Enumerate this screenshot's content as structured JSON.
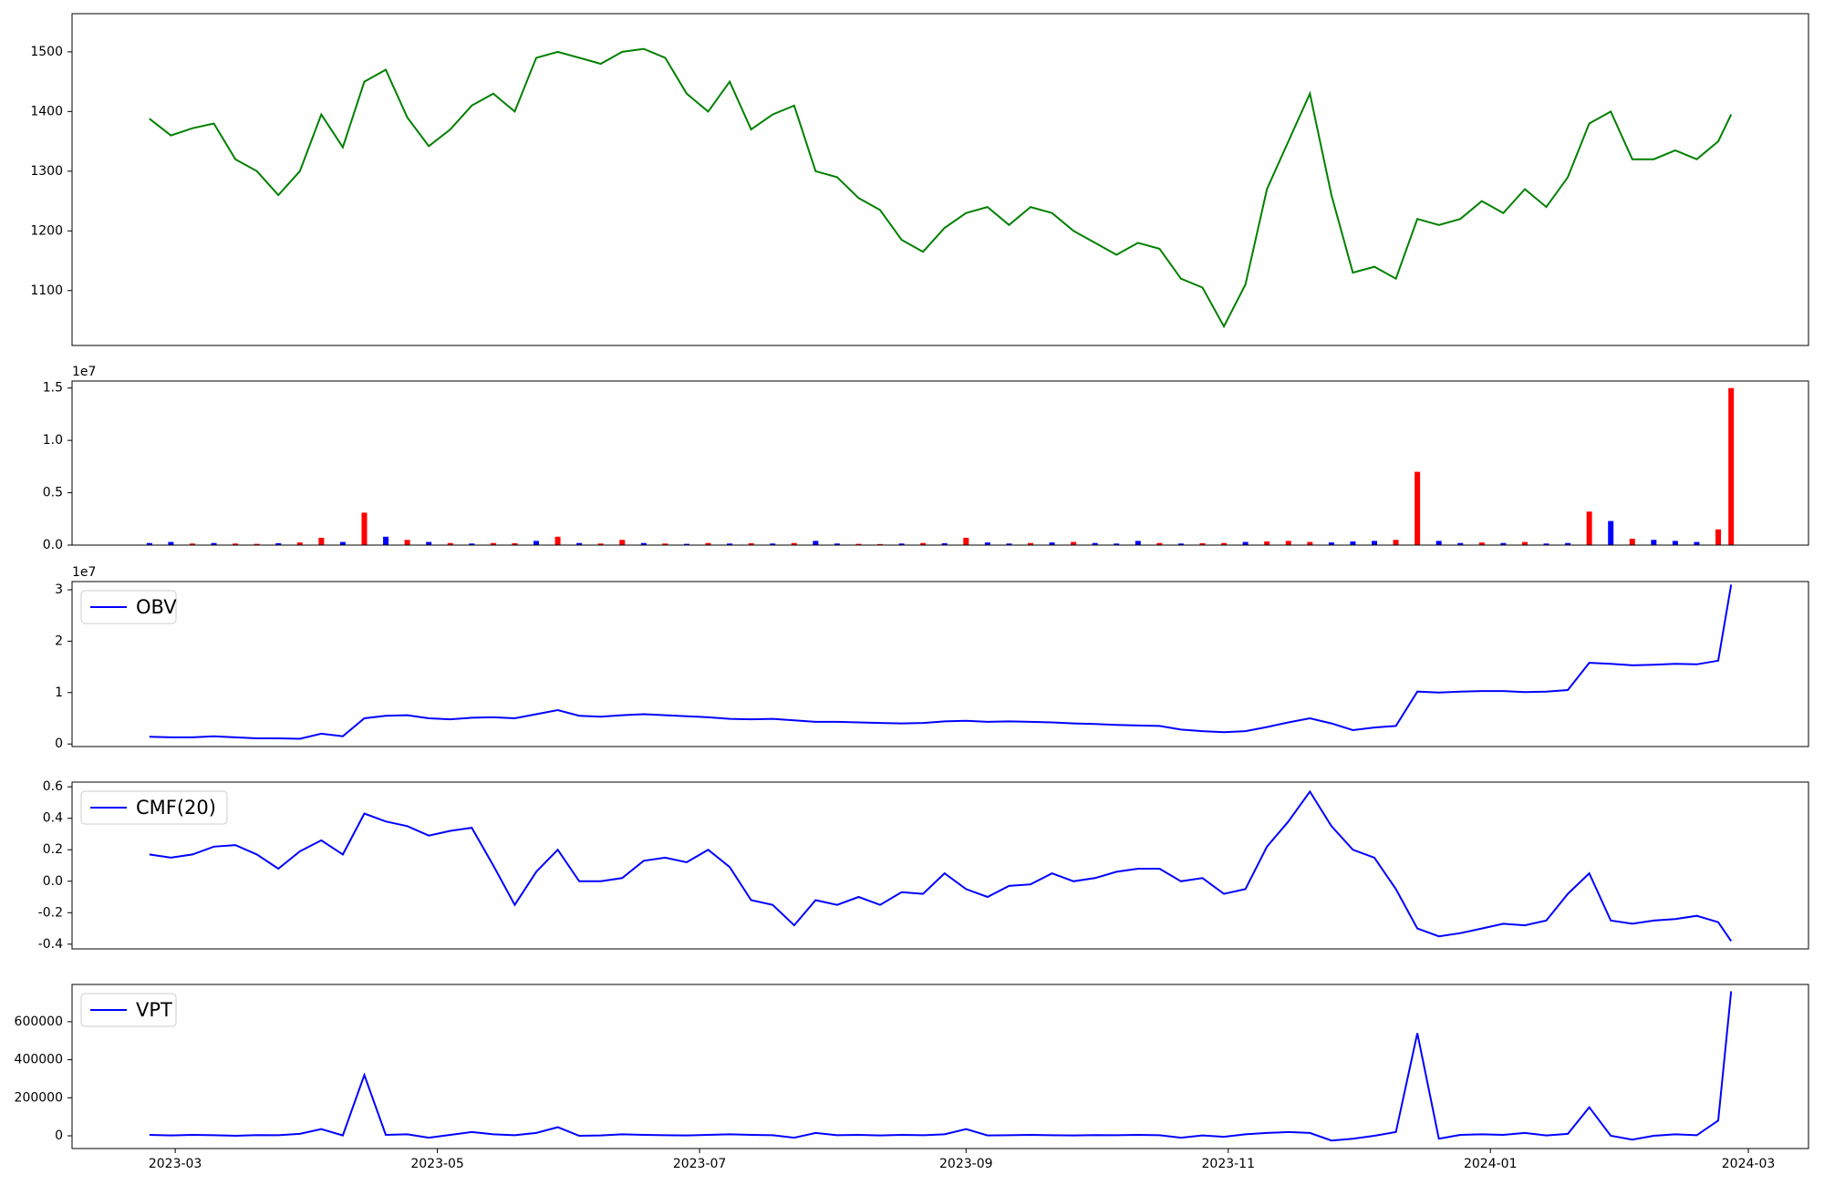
{
  "chart_data": [
    {
      "type": "line",
      "color": "green",
      "x": [
        19411,
        19416,
        19421,
        19426,
        19431,
        19436,
        19441,
        19446,
        19451,
        19456,
        19461,
        19466,
        19471,
        19476,
        19481,
        19486,
        19491,
        19496,
        19501,
        19506,
        19511,
        19516,
        19521,
        19526,
        19531,
        19536,
        19541,
        19546,
        19551,
        19556,
        19561,
        19566,
        19571,
        19576,
        19581,
        19586,
        19591,
        19596,
        19601,
        19606,
        19611,
        19616,
        19621,
        19626,
        19631,
        19636,
        19641,
        19646,
        19651,
        19656,
        19661,
        19666,
        19671,
        19676,
        19681,
        19686,
        19691,
        19696,
        19701,
        19706,
        19711,
        19716,
        19721,
        19726,
        19731,
        19736,
        19741,
        19746,
        19751,
        19756,
        19761,
        19766,
        19771,
        19776,
        19779
      ],
      "values": [
        1388,
        1360,
        1372,
        1380,
        1320,
        1300,
        1260,
        1300,
        1395,
        1340,
        1450,
        1470,
        1390,
        1342,
        1370,
        1410,
        1430,
        1400,
        1490,
        1500,
        1490,
        1480,
        1500,
        1505,
        1490,
        1430,
        1400,
        1450,
        1370,
        1395,
        1410,
        1300,
        1290,
        1255,
        1235,
        1185,
        1165,
        1205,
        1230,
        1240,
        1210,
        1240,
        1230,
        1200,
        1180,
        1160,
        1180,
        1170,
        1120,
        1105,
        1040,
        1110,
        1270,
        1350,
        1430,
        1260,
        1130,
        1140,
        1120,
        1220,
        1210,
        1220,
        1250,
        1230,
        1270,
        1240,
        1290,
        1380,
        1400,
        1320,
        1320,
        1335,
        1320,
        1350,
        1395
      ],
      "xlim": [
        19393,
        19797
      ],
      "ylim": [
        1008,
        1564
      ],
      "yticks": [
        1100,
        1200,
        1300,
        1400,
        1500
      ]
    },
    {
      "type": "bar",
      "offset_text": "1e7",
      "x": [
        19411,
        19416,
        19421,
        19426,
        19431,
        19436,
        19441,
        19446,
        19451,
        19456,
        19461,
        19466,
        19471,
        19476,
        19481,
        19486,
        19491,
        19496,
        19501,
        19506,
        19511,
        19516,
        19521,
        19526,
        19531,
        19536,
        19541,
        19546,
        19551,
        19556,
        19561,
        19566,
        19571,
        19576,
        19581,
        19586,
        19591,
        19596,
        19601,
        19606,
        19611,
        19616,
        19621,
        19626,
        19631,
        19636,
        19641,
        19646,
        19651,
        19656,
        19661,
        19666,
        19671,
        19676,
        19681,
        19686,
        19691,
        19696,
        19701,
        19706,
        19711,
        19716,
        19721,
        19726,
        19731,
        19736,
        19741,
        19746,
        19751,
        19756,
        19761,
        19766,
        19771,
        19776,
        19779
      ],
      "values": [
        200000,
        300000,
        150000,
        200000,
        150000,
        120000,
        180000,
        250000,
        700000,
        300000,
        3100000,
        800000,
        500000,
        300000,
        200000,
        150000,
        200000,
        180000,
        400000,
        800000,
        200000,
        150000,
        500000,
        200000,
        150000,
        120000,
        200000,
        150000,
        180000,
        150000,
        200000,
        400000,
        150000,
        120000,
        100000,
        150000,
        200000,
        180000,
        700000,
        250000,
        150000,
        200000,
        250000,
        300000,
        200000,
        150000,
        400000,
        200000,
        150000,
        180000,
        200000,
        300000,
        350000,
        400000,
        300000,
        250000,
        350000,
        400000,
        500000,
        7000000,
        400000,
        200000,
        250000,
        200000,
        300000,
        150000,
        200000,
        3200000,
        2300000,
        600000,
        500000,
        400000,
        300000,
        1500000,
        15000000
      ],
      "colors": [
        "blue",
        "blue",
        "red",
        "blue",
        "red",
        "red",
        "blue",
        "red",
        "red",
        "blue",
        "red",
        "blue",
        "red",
        "blue",
        "red",
        "blue",
        "red",
        "red",
        "blue",
        "red",
        "blue",
        "red",
        "red",
        "blue",
        "red",
        "blue",
        "red",
        "blue",
        "red",
        "blue",
        "red",
        "blue",
        "blue",
        "red",
        "red",
        "blue",
        "red",
        "blue",
        "red",
        "blue",
        "blue",
        "red",
        "blue",
        "red",
        "blue",
        "blue",
        "blue",
        "red",
        "blue",
        "red",
        "red",
        "blue",
        "red",
        "red",
        "red",
        "blue",
        "blue",
        "blue",
        "red",
        "red",
        "blue",
        "blue",
        "red",
        "blue",
        "red",
        "blue",
        "blue",
        "red",
        "blue",
        "red",
        "blue",
        "blue",
        "blue",
        "red",
        "red"
      ],
      "xlim": [
        19393,
        19797
      ],
      "ylim": [
        0,
        15670000
      ],
      "yticks": [
        {
          "value": 0,
          "label": "0.0"
        },
        {
          "value": 5000000,
          "label": "0.5"
        },
        {
          "value": 10000000,
          "label": "1.0"
        },
        {
          "value": 15000000,
          "label": "1.5"
        }
      ]
    },
    {
      "type": "line",
      "offset_text": "1e7",
      "legend": "upper left",
      "x": [
        19411,
        19416,
        19421,
        19426,
        19431,
        19436,
        19441,
        19446,
        19451,
        19456,
        19461,
        19466,
        19471,
        19476,
        19481,
        19486,
        19491,
        19496,
        19501,
        19506,
        19511,
        19516,
        19521,
        19526,
        19531,
        19536,
        19541,
        19546,
        19551,
        19556,
        19561,
        19566,
        19571,
        19576,
        19581,
        19586,
        19591,
        19596,
        19601,
        19606,
        19611,
        19616,
        19621,
        19626,
        19631,
        19636,
        19641,
        19646,
        19651,
        19656,
        19661,
        19666,
        19671,
        19676,
        19681,
        19686,
        19691,
        19696,
        19701,
        19706,
        19711,
        19716,
        19721,
        19726,
        19731,
        19736,
        19741,
        19746,
        19751,
        19756,
        19761,
        19766,
        19771,
        19776,
        19779
      ],
      "series": [
        {
          "name": "OBV",
          "color": "blue",
          "values": [
            1400000,
            1300000,
            1300000,
            1500000,
            1300000,
            1100000,
            1100000,
            1000000,
            2000000,
            1500000,
            5000000,
            5500000,
            5600000,
            5000000,
            4800000,
            5100000,
            5200000,
            5000000,
            5800000,
            6600000,
            5500000,
            5300000,
            5600000,
            5800000,
            5600000,
            5400000,
            5200000,
            4900000,
            4800000,
            4900000,
            4600000,
            4300000,
            4300000,
            4200000,
            4100000,
            4000000,
            4100000,
            4400000,
            4500000,
            4300000,
            4400000,
            4300000,
            4200000,
            4000000,
            3900000,
            3700000,
            3600000,
            3500000,
            2800000,
            2500000,
            2300000,
            2500000,
            3300000,
            4200000,
            5000000,
            4000000,
            2700000,
            3200000,
            3500000,
            10200000,
            10000000,
            10200000,
            10300000,
            10300000,
            10100000,
            10200000,
            10500000,
            15800000,
            15600000,
            15300000,
            15400000,
            15600000,
            15500000,
            16200000,
            31000000
          ]
        }
      ],
      "xlim": [
        19393,
        19797
      ],
      "ylim": [
        -500000,
        31600000
      ],
      "yticks": [
        {
          "value": 0,
          "label": "0"
        },
        {
          "value": 10000000,
          "label": "1"
        },
        {
          "value": 20000000,
          "label": "2"
        },
        {
          "value": 30000000,
          "label": "3"
        }
      ]
    },
    {
      "type": "line",
      "legend": "upper left",
      "x": [
        19411,
        19416,
        19421,
        19426,
        19431,
        19436,
        19441,
        19446,
        19451,
        19456,
        19461,
        19466,
        19471,
        19476,
        19481,
        19486,
        19491,
        19496,
        19501,
        19506,
        19511,
        19516,
        19521,
        19526,
        19531,
        19536,
        19541,
        19546,
        19551,
        19556,
        19561,
        19566,
        19571,
        19576,
        19581,
        19586,
        19591,
        19596,
        19601,
        19606,
        19611,
        19616,
        19621,
        19626,
        19631,
        19636,
        19641,
        19646,
        19651,
        19656,
        19661,
        19666,
        19671,
        19676,
        19681,
        19686,
        19691,
        19696,
        19701,
        19706,
        19711,
        19716,
        19721,
        19726,
        19731,
        19736,
        19741,
        19746,
        19751,
        19756,
        19761,
        19766,
        19771,
        19776,
        19779
      ],
      "series": [
        {
          "name": "CMF(20)",
          "color": "blue",
          "values": [
            0.17,
            0.15,
            0.17,
            0.22,
            0.23,
            0.17,
            0.08,
            0.19,
            0.26,
            0.17,
            0.43,
            0.38,
            0.35,
            0.29,
            0.32,
            0.34,
            0.1,
            -0.15,
            0.06,
            0.2,
            0.0,
            0.0,
            0.02,
            0.13,
            0.15,
            0.12,
            0.2,
            0.09,
            -0.12,
            -0.15,
            -0.28,
            -0.12,
            -0.15,
            -0.1,
            -0.15,
            -0.07,
            -0.08,
            0.05,
            -0.05,
            -0.1,
            -0.03,
            -0.02,
            0.05,
            0.0,
            0.02,
            0.06,
            0.08,
            0.08,
            0.0,
            0.02,
            -0.08,
            -0.05,
            0.22,
            0.38,
            0.57,
            0.35,
            0.2,
            0.15,
            -0.05,
            -0.3,
            -0.35,
            -0.33,
            -0.3,
            -0.27,
            -0.28,
            -0.25,
            -0.08,
            0.05,
            -0.25,
            -0.27,
            -0.25,
            -0.24,
            -0.22,
            -0.26,
            -0.38
          ]
        }
      ],
      "xlim": [
        19393,
        19797
      ],
      "ylim": [
        -0.43,
        0.63
      ],
      "yticks": [
        -0.4,
        -0.2,
        {
          "value": 0,
          "label": "0.0"
        },
        0.2,
        0.4,
        0.6
      ]
    },
    {
      "type": "line",
      "legend": "upper left",
      "x": [
        19411,
        19416,
        19421,
        19426,
        19431,
        19436,
        19441,
        19446,
        19451,
        19456,
        19461,
        19466,
        19471,
        19476,
        19481,
        19486,
        19491,
        19496,
        19501,
        19506,
        19511,
        19516,
        19521,
        19526,
        19531,
        19536,
        19541,
        19546,
        19551,
        19556,
        19561,
        19566,
        19571,
        19576,
        19581,
        19586,
        19591,
        19596,
        19601,
        19606,
        19611,
        19616,
        19621,
        19626,
        19631,
        19636,
        19641,
        19646,
        19651,
        19656,
        19661,
        19666,
        19671,
        19676,
        19681,
        19686,
        19691,
        19696,
        19701,
        19706,
        19711,
        19716,
        19721,
        19726,
        19731,
        19736,
        19741,
        19746,
        19751,
        19756,
        19761,
        19766,
        19771,
        19776,
        19779
      ],
      "series": [
        {
          "name": "VPT",
          "color": "blue",
          "values": [
            5000,
            2000,
            5000,
            3000,
            0,
            4000,
            3000,
            10000,
            35000,
            2000,
            320000,
            5000,
            8000,
            -10000,
            5000,
            20000,
            8000,
            3000,
            15000,
            45000,
            0,
            2000,
            8000,
            5000,
            3000,
            2000,
            5000,
            8000,
            5000,
            3000,
            -10000,
            15000,
            3000,
            5000,
            2000,
            5000,
            3000,
            8000,
            35000,
            2000,
            3000,
            5000,
            3000,
            2000,
            4000,
            3000,
            5000,
            3000,
            -10000,
            2000,
            -5000,
            8000,
            15000,
            20000,
            15000,
            -25000,
            -15000,
            0,
            20000,
            540000,
            -15000,
            5000,
            8000,
            5000,
            15000,
            2000,
            10000,
            150000,
            0,
            -20000,
            0,
            8000,
            3000,
            80000,
            760000
          ]
        }
      ],
      "xlim": [
        19393,
        19797
      ],
      "ylim": [
        -67000,
        796000
      ],
      "yticks": [
        0,
        200000,
        400000,
        600000
      ],
      "xticks": [
        {
          "value": 19417,
          "label": "2023-03"
        },
        {
          "value": 19478,
          "label": "2023-05"
        },
        {
          "value": 19539,
          "label": "2023-07"
        },
        {
          "value": 19601,
          "label": "2023-09"
        },
        {
          "value": 19662,
          "label": "2023-11"
        },
        {
          "value": 19723,
          "label": "2024-01"
        },
        {
          "value": 19783,
          "label": "2024-03"
        }
      ]
    }
  ]
}
